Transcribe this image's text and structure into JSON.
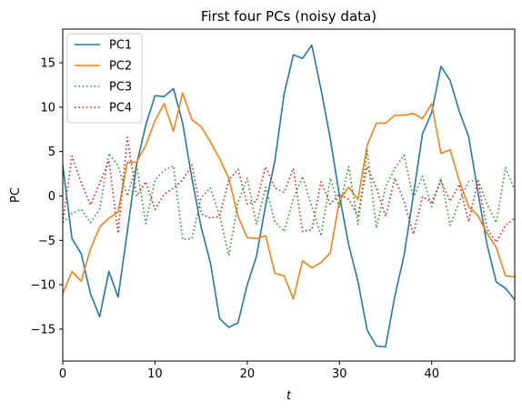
{
  "chart_data": {
    "type": "line",
    "title": "First four PCs (noisy data)",
    "xlabel": "t",
    "ylabel": "PC",
    "xlim": [
      0,
      49
    ],
    "ylim": [
      -18.6,
      18.8
    ],
    "xticks": [
      0,
      10,
      20,
      30,
      40
    ],
    "yticks": [
      -15,
      -10,
      -5,
      0,
      5,
      10,
      15
    ],
    "grid": false,
    "legend_position": "top-left",
    "x": [
      0,
      1,
      2,
      3,
      4,
      5,
      6,
      7,
      8,
      9,
      10,
      11,
      12,
      13,
      14,
      15,
      16,
      17,
      18,
      19,
      20,
      21,
      22,
      23,
      24,
      25,
      26,
      27,
      28,
      29,
      30,
      31,
      32,
      33,
      34,
      35,
      36,
      37,
      38,
      39,
      40,
      41,
      42,
      43,
      44,
      45,
      46,
      47,
      48,
      49
    ],
    "series": [
      {
        "name": "PC1",
        "color": "#1f77b4",
        "style": "solid",
        "values": [
          3.5,
          -4.8,
          -6.5,
          -11.0,
          -13.6,
          -8.5,
          -11.4,
          -4.0,
          3.5,
          8.0,
          11.3,
          11.2,
          12.1,
          8.2,
          2.0,
          -3.5,
          -7.5,
          -13.8,
          -14.8,
          -14.3,
          -10.0,
          -6.8,
          -1.0,
          4.0,
          11.5,
          15.9,
          15.5,
          17.0,
          12.0,
          6.5,
          0.0,
          -5.5,
          -9.6,
          -15.1,
          -16.9,
          -17.0,
          -11.3,
          -6.7,
          0.0,
          7.0,
          9.4,
          14.6,
          13.0,
          9.5,
          6.7,
          0.5,
          -5.5,
          -9.7,
          -10.4,
          -11.7
        ]
      },
      {
        "name": "PC2",
        "color": "#ff7f0e",
        "style": "solid",
        "values": [
          -11.0,
          -8.5,
          -9.6,
          -6.0,
          -3.5,
          -2.5,
          -1.8,
          3.8,
          3.8,
          5.7,
          8.5,
          10.4,
          7.3,
          11.6,
          8.6,
          7.8,
          6.1,
          4.2,
          2.0,
          -2.3,
          -4.7,
          -4.8,
          -4.5,
          -8.7,
          -9.0,
          -11.6,
          -7.3,
          -8.1,
          -7.5,
          -6.4,
          -0.5,
          1.0,
          -0.4,
          5.7,
          8.2,
          8.2,
          9.1,
          9.1,
          9.3,
          8.7,
          10.4,
          4.8,
          5.2,
          1.7,
          -1.2,
          -2.2,
          -4.2,
          -5.8,
          -9.0,
          -9.1
        ]
      },
      {
        "name": "PC3",
        "color": "#2ca02c",
        "style": "dotted",
        "values": [
          -3.0,
          -2.0,
          -1.5,
          -3.0,
          -1.5,
          4.8,
          3.4,
          0.0,
          3.5,
          -3.1,
          1.8,
          2.9,
          3.4,
          -4.9,
          -4.8,
          -0.2,
          0.9,
          -2.2,
          -6.7,
          -0.7,
          2.0,
          -3.2,
          1.0,
          -2.9,
          -4.0,
          -0.3,
          2.2,
          -1.2,
          -4.5,
          2.0,
          -1.3,
          3.3,
          -3.2,
          5.1,
          -3.6,
          1.0,
          3.1,
          4.6,
          -0.2,
          2.2,
          -1.2,
          2.0,
          -3.3,
          -0.6,
          1.6,
          1.9,
          -0.9,
          -3.0,
          3.2,
          0.7
        ]
      },
      {
        "name": "PC4",
        "color": "#d62728",
        "style": "dotted",
        "values": [
          -3.0,
          4.5,
          1.5,
          -1.0,
          1.4,
          4.0,
          -4.2,
          6.6,
          0.0,
          1.6,
          -1.5,
          0.2,
          0.9,
          1.8,
          3.5,
          -2.0,
          -2.5,
          -2.3,
          1.8,
          3.0,
          -0.9,
          -0.6,
          3.3,
          0.9,
          0.4,
          3.1,
          -4.0,
          -3.8,
          1.6,
          -0.9,
          0.2,
          -0.4,
          -2.2,
          3.3,
          0.9,
          -2.3,
          2.0,
          -0.6,
          -4.3,
          -0.1,
          -0.7,
          1.7,
          -0.6,
          1.3,
          -2.9,
          1.7,
          -3.7,
          -5.2,
          -3.3,
          -2.5
        ]
      }
    ]
  }
}
